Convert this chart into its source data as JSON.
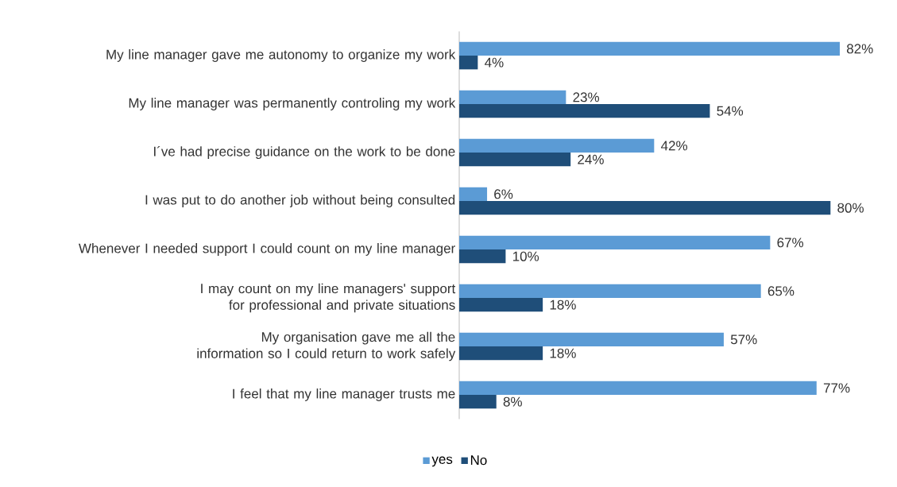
{
  "chart_data": {
    "type": "bar",
    "orientation": "horizontal",
    "categories": [
      "My line manager gave me autonomy to organize my work",
      "My line manager was permanently controling my work",
      "I´ve had precise guidance on the work to be done",
      "I was put to do another job without being consulted",
      "Whenever I needed support I could count on my line manager",
      "I may count on my line managers' support for professional and private situations",
      "My organisation gave me all the information so I could return to work safely",
      "I feel that my line manager trusts me"
    ],
    "series": [
      {
        "name": "yes",
        "color": "#5b9bd5",
        "values": [
          82,
          23,
          42,
          6,
          67,
          65,
          57,
          77
        ],
        "value_labels": [
          "82%",
          "23%",
          "42%",
          "6%",
          "67%",
          "65%",
          "57%",
          "77%"
        ]
      },
      {
        "name": "No",
        "color": "#1f4e79",
        "values": [
          4,
          54,
          24,
          80,
          10,
          18,
          18,
          8
        ],
        "value_labels": [
          "4%",
          "54%",
          "24%",
          "80%",
          "10%",
          "18%",
          "18%",
          "8%"
        ]
      }
    ],
    "tick_labels": "y",
    "legend": "bottom"
  }
}
